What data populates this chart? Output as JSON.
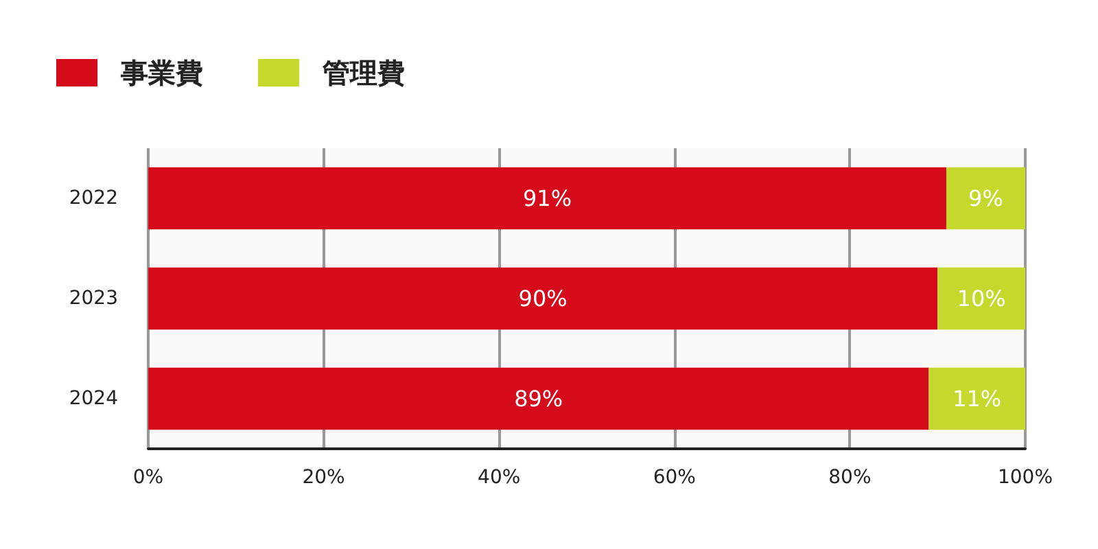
{
  "chart_data": {
    "type": "bar",
    "orientation": "horizontal",
    "stacked": true,
    "categories": [
      "2022",
      "2023",
      "2024"
    ],
    "series": [
      {
        "name": "事業費",
        "color": "#d50b1b",
        "values": [
          91,
          90,
          89
        ],
        "value_labels": [
          "91%",
          "90%",
          "89%"
        ]
      },
      {
        "name": "管理費",
        "color": "#c5d92d",
        "values": [
          9,
          10,
          11
        ],
        "value_labels": [
          "9%",
          "10%",
          "11%"
        ]
      }
    ],
    "xlim": [
      0,
      100
    ],
    "xticks": [
      {
        "value": 0,
        "label": "0%"
      },
      {
        "value": 20,
        "label": "20%"
      },
      {
        "value": 40,
        "label": "40%"
      },
      {
        "value": 60,
        "label": "60%"
      },
      {
        "value": 80,
        "label": "80%"
      },
      {
        "value": 100,
        "label": "100%"
      }
    ],
    "grid": "x",
    "legend": "top left"
  }
}
